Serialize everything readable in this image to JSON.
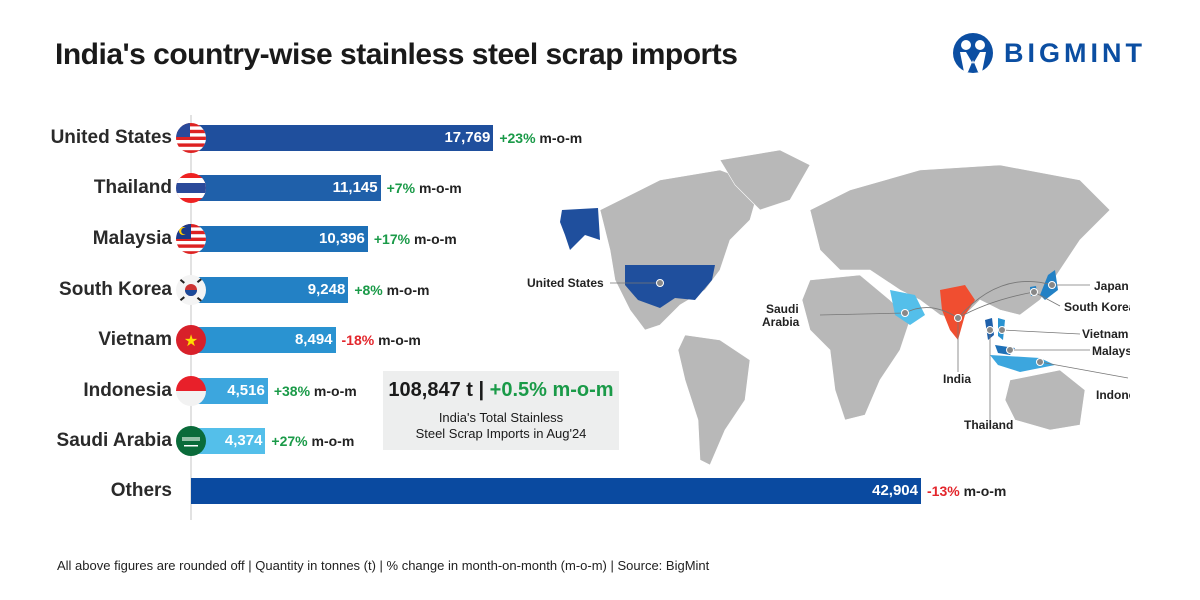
{
  "title": "India's country-wise stainless steel scrap imports",
  "logo": "BIGMINT",
  "footer": "All above figures are rounded off | Quantity in tonnes (t) | % change in month-on-month (m-o-m) | Source: BigMint",
  "summary": {
    "total": "108,847 t",
    "sep": "|",
    "change": "+0.5% m-o-m",
    "line1": "India's Total Stainless",
    "line2": "Steel Scrap Imports in Aug'24"
  },
  "colors": {
    "positive": "#1a9a48",
    "negative": "#e3262c",
    "brand": "#0b4ea2",
    "india": "#f04e30"
  },
  "chart_data": {
    "type": "bar",
    "orientation": "horizontal",
    "title": "India's country-wise stainless steel scrap imports",
    "unit": "t",
    "categories": [
      "United States",
      "Thailand",
      "Malaysia",
      "South Korea",
      "Vietnam",
      "Indonesia",
      "Saudi Arabia",
      "Others"
    ],
    "values": [
      17769,
      11145,
      10396,
      9248,
      8494,
      4516,
      4374,
      42904
    ],
    "value_labels": [
      "17,769",
      "11,145",
      "10,396",
      "9,248",
      "8,494",
      "4,516",
      "4,374",
      "42,904"
    ],
    "changes": [
      "+23%",
      "+7%",
      "+17%",
      "+8%",
      "-18%",
      "+38%",
      "+27%",
      "-13%"
    ],
    "change_suffix": "m-o-m",
    "bar_colors": [
      "#1f4f9d",
      "#1f60aa",
      "#1e70b7",
      "#2381c5",
      "#2a93d1",
      "#3ca6de",
      "#54bfea",
      "#0a4aa0"
    ],
    "flags": [
      "us-flag",
      "thailand-flag",
      "malaysia-flag",
      "south-korea-flag",
      "vietnam-flag",
      "indonesia-flag",
      "saudi-arabia-flag",
      null
    ]
  },
  "map": {
    "labels": [
      "United States",
      "Saudi",
      "Arabia",
      "India",
      "Thailand",
      "Japan",
      "South Korea",
      "Vietnam",
      "Malaysia",
      "Indonesia"
    ]
  }
}
